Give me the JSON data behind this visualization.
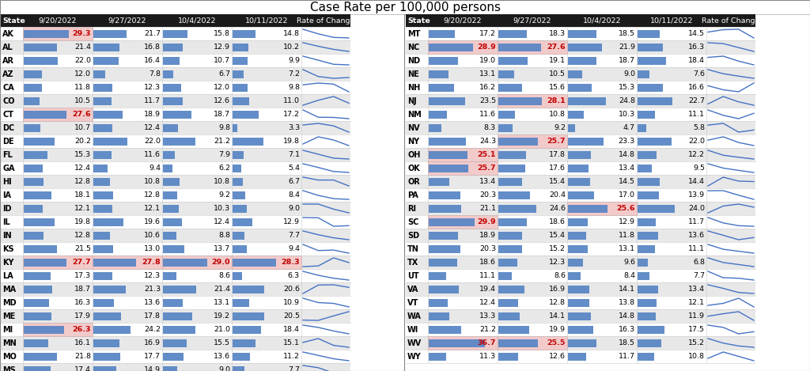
{
  "title": "Case Rate per 100,000 persons",
  "left_data": [
    {
      "state": "AK",
      "v1": 29.3,
      "v2": 21.7,
      "v3": 15.8,
      "v4": 14.8,
      "highlight": [
        1
      ]
    },
    {
      "state": "AL",
      "v1": 21.4,
      "v2": 16.8,
      "v3": 12.9,
      "v4": 10.2,
      "highlight": []
    },
    {
      "state": "AR",
      "v1": 22.0,
      "v2": 16.4,
      "v3": 10.7,
      "v4": 9.9,
      "highlight": []
    },
    {
      "state": "AZ",
      "v1": 12.0,
      "v2": 7.8,
      "v3": 6.7,
      "v4": 7.2,
      "highlight": []
    },
    {
      "state": "CA",
      "v1": 11.8,
      "v2": 12.3,
      "v3": 12.0,
      "v4": 9.8,
      "highlight": []
    },
    {
      "state": "CO",
      "v1": 10.5,
      "v2": 11.7,
      "v3": 12.6,
      "v4": 11.0,
      "highlight": []
    },
    {
      "state": "CT",
      "v1": 27.6,
      "v2": 18.9,
      "v3": 18.7,
      "v4": 17.2,
      "highlight": [
        1
      ]
    },
    {
      "state": "DC",
      "v1": 10.7,
      "v2": 12.4,
      "v3": 9.8,
      "v4": 3.3,
      "highlight": []
    },
    {
      "state": "DE",
      "v1": 20.2,
      "v2": 22.0,
      "v3": 21.2,
      "v4": 19.8,
      "highlight": []
    },
    {
      "state": "FL",
      "v1": 15.3,
      "v2": 11.6,
      "v3": 7.9,
      "v4": 7.1,
      "highlight": []
    },
    {
      "state": "GA",
      "v1": 12.4,
      "v2": 9.4,
      "v3": 6.2,
      "v4": 5.4,
      "highlight": []
    },
    {
      "state": "HI",
      "v1": 12.8,
      "v2": 10.8,
      "v3": 10.8,
      "v4": 6.7,
      "highlight": []
    },
    {
      "state": "IA",
      "v1": 18.1,
      "v2": 12.8,
      "v3": 9.2,
      "v4": 8.4,
      "highlight": []
    },
    {
      "state": "ID",
      "v1": 12.1,
      "v2": 12.1,
      "v3": 10.3,
      "v4": 9.0,
      "highlight": []
    },
    {
      "state": "IL",
      "v1": 19.8,
      "v2": 19.6,
      "v3": 12.4,
      "v4": 12.9,
      "highlight": []
    },
    {
      "state": "IN",
      "v1": 12.8,
      "v2": 10.6,
      "v3": 8.8,
      "v4": 7.7,
      "highlight": []
    },
    {
      "state": "KS",
      "v1": 21.5,
      "v2": 13.0,
      "v3": 13.7,
      "v4": 9.4,
      "highlight": []
    },
    {
      "state": "KY",
      "v1": 27.7,
      "v2": 27.8,
      "v3": 29.0,
      "v4": 28.3,
      "highlight": [
        1,
        2,
        3,
        4
      ]
    },
    {
      "state": "LA",
      "v1": 17.3,
      "v2": 12.3,
      "v3": 8.6,
      "v4": 6.3,
      "highlight": []
    },
    {
      "state": "MA",
      "v1": 18.7,
      "v2": 21.3,
      "v3": 21.4,
      "v4": 20.6,
      "highlight": []
    },
    {
      "state": "MD",
      "v1": 16.3,
      "v2": 13.6,
      "v3": 13.1,
      "v4": 10.9,
      "highlight": []
    },
    {
      "state": "ME",
      "v1": 17.9,
      "v2": 17.8,
      "v3": 19.2,
      "v4": 20.5,
      "highlight": []
    },
    {
      "state": "MI",
      "v1": 26.3,
      "v2": 24.2,
      "v3": 21.0,
      "v4": 18.4,
      "highlight": [
        1
      ]
    },
    {
      "state": "MN",
      "v1": 16.1,
      "v2": 16.9,
      "v3": 15.5,
      "v4": 15.1,
      "highlight": []
    },
    {
      "state": "MO",
      "v1": 21.8,
      "v2": 17.7,
      "v3": 13.6,
      "v4": 11.2,
      "highlight": []
    },
    {
      "state": "MS",
      "v1": 17.4,
      "v2": 14.9,
      "v3": 9.0,
      "v4": 7.7,
      "highlight": []
    }
  ],
  "right_data": [
    {
      "state": "MT",
      "v1": 17.2,
      "v2": 18.3,
      "v3": 18.5,
      "v4": 14.5,
      "highlight": []
    },
    {
      "state": "NC",
      "v1": 28.9,
      "v2": 27.6,
      "v3": 21.9,
      "v4": 16.3,
      "highlight": [
        1,
        2
      ]
    },
    {
      "state": "ND",
      "v1": 19.0,
      "v2": 19.1,
      "v3": 18.7,
      "v4": 18.4,
      "highlight": []
    },
    {
      "state": "NE",
      "v1": 13.1,
      "v2": 10.5,
      "v3": 9.0,
      "v4": 7.6,
      "highlight": []
    },
    {
      "state": "NH",
      "v1": 16.2,
      "v2": 15.6,
      "v3": 15.3,
      "v4": 16.6,
      "highlight": []
    },
    {
      "state": "NJ",
      "v1": 23.5,
      "v2": 28.1,
      "v3": 24.8,
      "v4": 22.7,
      "highlight": [
        2
      ]
    },
    {
      "state": "NM",
      "v1": 11.6,
      "v2": 10.8,
      "v3": 10.3,
      "v4": 11.1,
      "highlight": []
    },
    {
      "state": "NV",
      "v1": 8.3,
      "v2": 9.2,
      "v3": 4.7,
      "v4": 5.8,
      "highlight": []
    },
    {
      "state": "NY",
      "v1": 24.3,
      "v2": 25.7,
      "v3": 23.3,
      "v4": 22.0,
      "highlight": [
        2
      ]
    },
    {
      "state": "OH",
      "v1": 25.1,
      "v2": 17.8,
      "v3": 14.8,
      "v4": 12.2,
      "highlight": [
        1
      ]
    },
    {
      "state": "OK",
      "v1": 25.7,
      "v2": 17.6,
      "v3": 13.4,
      "v4": 9.5,
      "highlight": [
        1
      ]
    },
    {
      "state": "OR",
      "v1": 13.4,
      "v2": 15.4,
      "v3": 14.5,
      "v4": 14.4,
      "highlight": []
    },
    {
      "state": "PA",
      "v1": 20.3,
      "v2": 20.4,
      "v3": 17.0,
      "v4": 13.9,
      "highlight": []
    },
    {
      "state": "RI",
      "v1": 21.1,
      "v2": 24.6,
      "v3": 25.6,
      "v4": 24.0,
      "highlight": [
        3
      ]
    },
    {
      "state": "SC",
      "v1": 29.9,
      "v2": 18.6,
      "v3": 12.9,
      "v4": 11.7,
      "highlight": [
        1
      ]
    },
    {
      "state": "SD",
      "v1": 18.9,
      "v2": 15.4,
      "v3": 11.8,
      "v4": 13.6,
      "highlight": []
    },
    {
      "state": "TN",
      "v1": 20.3,
      "v2": 15.2,
      "v3": 13.1,
      "v4": 11.1,
      "highlight": []
    },
    {
      "state": "TX",
      "v1": 18.6,
      "v2": 12.3,
      "v3": 9.6,
      "v4": 6.8,
      "highlight": []
    },
    {
      "state": "UT",
      "v1": 11.1,
      "v2": 8.6,
      "v3": 8.4,
      "v4": 7.7,
      "highlight": []
    },
    {
      "state": "VA",
      "v1": 19.4,
      "v2": 16.9,
      "v3": 14.1,
      "v4": 13.4,
      "highlight": []
    },
    {
      "state": "VT",
      "v1": 12.4,
      "v2": 12.8,
      "v3": 13.8,
      "v4": 12.1,
      "highlight": []
    },
    {
      "state": "WA",
      "v1": 13.3,
      "v2": 14.1,
      "v3": 14.8,
      "v4": 11.9,
      "highlight": []
    },
    {
      "state": "WI",
      "v1": 21.2,
      "v2": 19.9,
      "v3": 16.3,
      "v4": 17.5,
      "highlight": []
    },
    {
      "state": "WV",
      "v1": 36.7,
      "v2": 25.5,
      "v3": 18.5,
      "v4": 15.2,
      "highlight": [
        1,
        2
      ]
    },
    {
      "state": "WY",
      "v1": 11.3,
      "v2": 12.6,
      "v3": 11.7,
      "v4": 10.8,
      "highlight": []
    }
  ],
  "bar_color": "#5B87C5",
  "highlight_bg": "#F2CACA",
  "highlight_text": "#C00000",
  "header_bg": "#1A1A1A",
  "row_bg_alt": "#E8E8E8",
  "row_bg_norm": "#FFFFFF",
  "grid_color": "#CCCCCC",
  "max_bar_val": 37,
  "title_fontsize": 11,
  "header_fontsize": 6.8,
  "cell_fontsize": 6.8,
  "state_fontsize": 7.0
}
